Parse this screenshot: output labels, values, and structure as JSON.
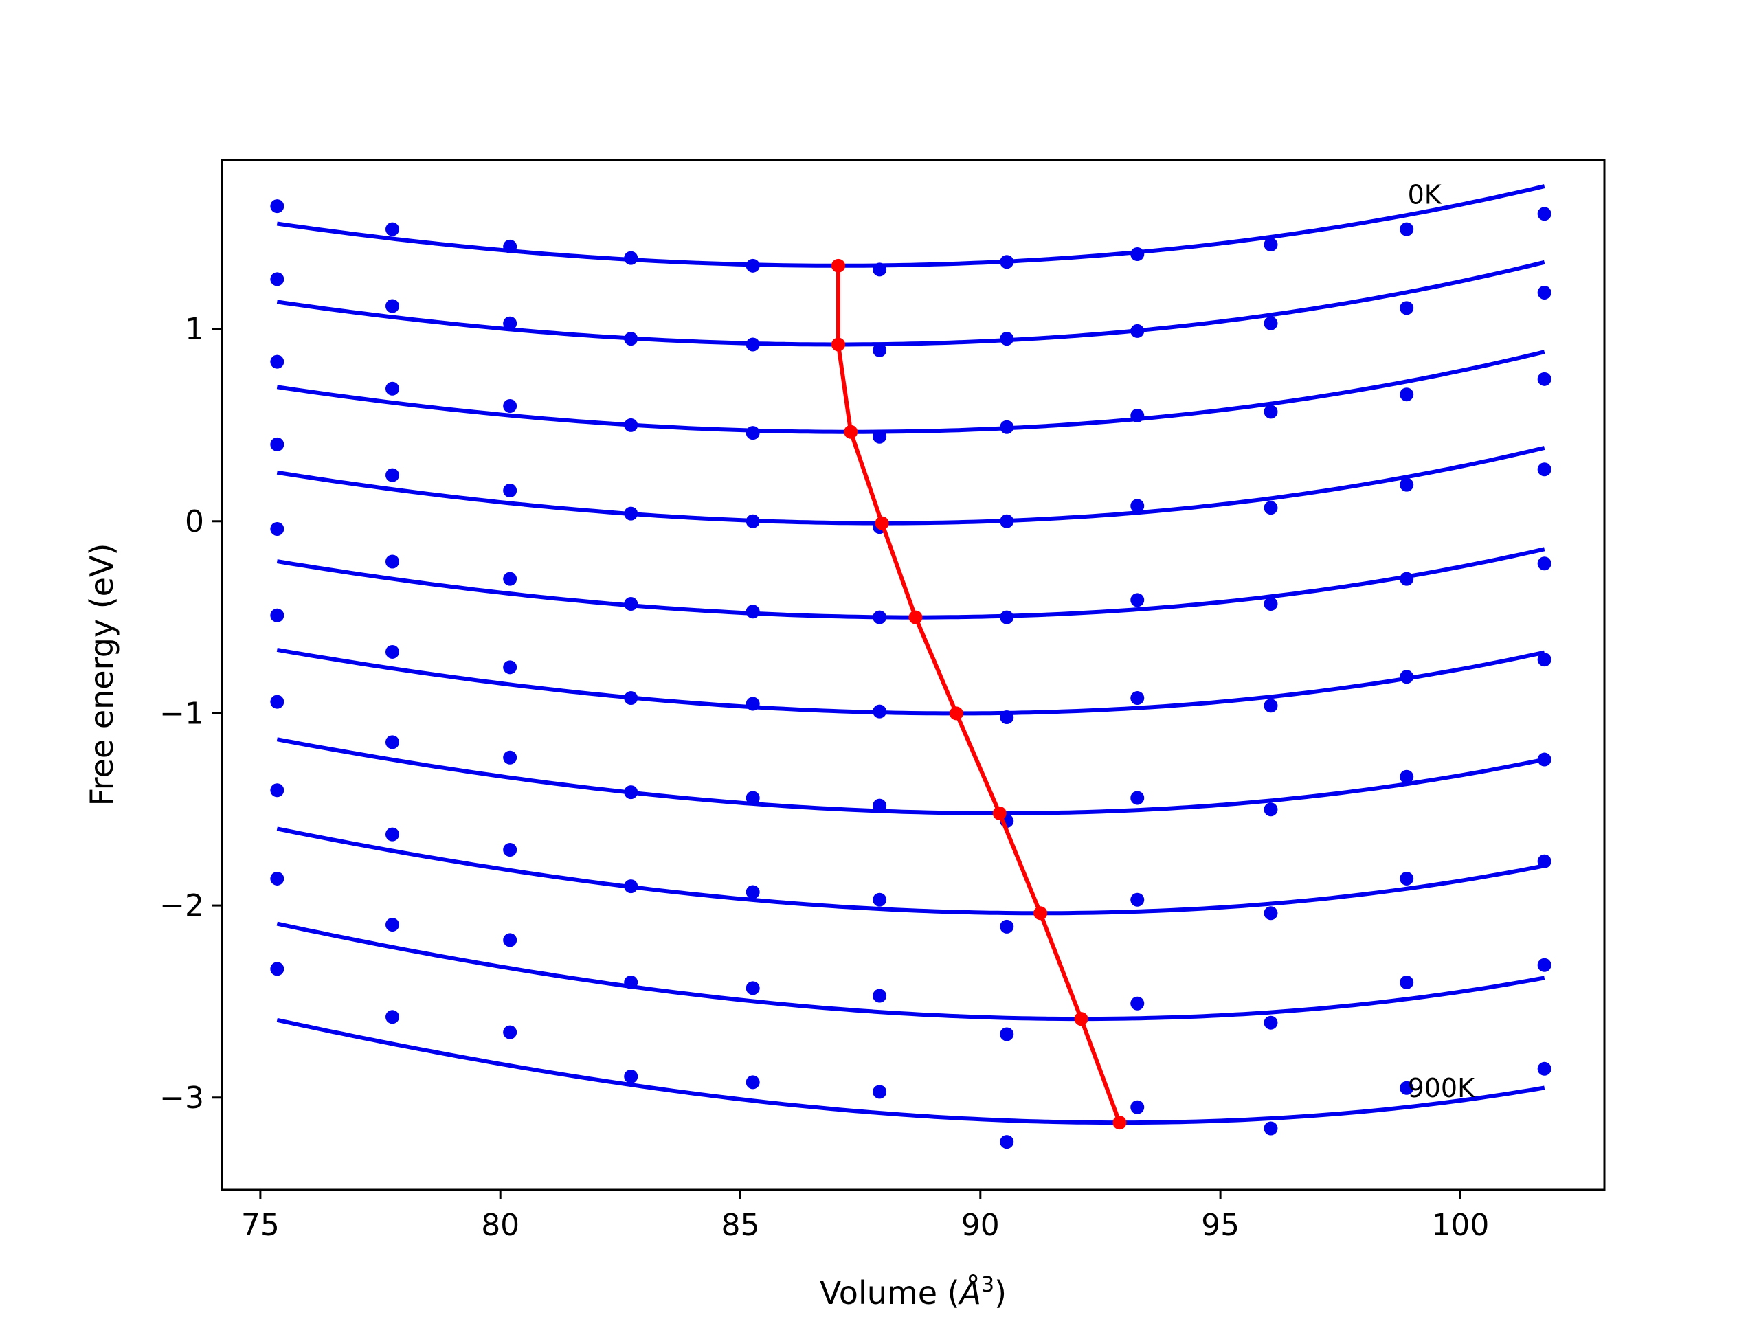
{
  "chart_data": {
    "type": "line",
    "title": "",
    "xlabel": "Volume (",
    "xlabel_unit_symbol": "Å",
    "xlabel_unit_power": "3",
    "xlabel_close": ")",
    "ylabel": "Free energy (eV)",
    "xlim": [
      74.2,
      103.0
    ],
    "ylim": [
      -3.48,
      1.88
    ],
    "grid": false,
    "x_ticks": [
      75,
      80,
      85,
      90,
      95,
      100
    ],
    "x_tick_labels": [
      "75",
      "80",
      "85",
      "90",
      "95",
      "100"
    ],
    "y_ticks": [
      1,
      0,
      -1,
      -2,
      -3
    ],
    "y_tick_labels": [
      "1",
      "0",
      "−1",
      "−2",
      "−3"
    ],
    "volumes": [
      75.35,
      77.75,
      80.2,
      82.72,
      85.26,
      87.9,
      90.55,
      93.27,
      96.05,
      98.88,
      101.75
    ],
    "colors": {
      "curves": "#0000ee",
      "minima": "#ff0000"
    },
    "series": [
      {
        "points": [
          1.64,
          1.52,
          1.43,
          1.37,
          1.33,
          1.31,
          1.35,
          1.39,
          1.44,
          1.52,
          1.6
        ],
        "fit": {
          "vmin": 87.04,
          "fmin": 1.33,
          "a": 0.00174,
          "b": 1.17e-05
        }
      },
      {
        "points": [
          1.26,
          1.12,
          1.03,
          0.95,
          0.92,
          0.89,
          0.95,
          0.99,
          1.03,
          1.11,
          1.19
        ],
        "fit": {
          "vmin": 87.04,
          "fmin": 0.92,
          "a": 0.00178,
          "b": 1.34e-05
        }
      },
      {
        "points": [
          0.83,
          0.69,
          0.6,
          0.5,
          0.46,
          0.44,
          0.49,
          0.55,
          0.57,
          0.66,
          0.74
        ],
        "fit": {
          "vmin": 87.3,
          "fmin": 0.465,
          "a": 0.0018,
          "b": 1.35e-05
        }
      },
      {
        "points": [
          0.4,
          0.24,
          0.16,
          0.04,
          0.0,
          -0.03,
          0.0,
          0.08,
          0.07,
          0.19,
          0.27
        ],
        "fit": {
          "vmin": 87.95,
          "fmin": -0.01,
          "a": 0.00185,
          "b": 1.5e-05
        }
      },
      {
        "points": [
          -0.04,
          -0.21,
          -0.3,
          -0.43,
          -0.47,
          -0.5,
          -0.5,
          -0.41,
          -0.43,
          -0.3,
          -0.22
        ],
        "fit": {
          "vmin": 88.65,
          "fmin": -0.5,
          "a": 0.00186,
          "b": 1.6e-05
        }
      },
      {
        "points": [
          -0.49,
          -0.68,
          -0.76,
          -0.92,
          -0.95,
          -0.99,
          -1.02,
          -0.92,
          -0.96,
          -0.81,
          -0.72
        ],
        "fit": {
          "vmin": 89.5,
          "fmin": -1.0,
          "a": 0.0019,
          "b": 1.75e-05
        }
      },
      {
        "points": [
          -0.94,
          -1.15,
          -1.23,
          -1.41,
          -1.44,
          -1.48,
          -1.56,
          -1.44,
          -1.5,
          -1.33,
          -1.24
        ],
        "fit": {
          "vmin": 90.4,
          "fmin": -1.52,
          "a": 0.00197,
          "b": 1.8e-05
        }
      },
      {
        "points": [
          -1.4,
          -1.63,
          -1.71,
          -1.9,
          -1.93,
          -1.97,
          -2.11,
          -1.97,
          -2.04,
          -1.86,
          -1.77
        ],
        "fit": {
          "vmin": 91.25,
          "fmin": -2.04,
          "a": 0.00204,
          "b": 1.9e-05
        }
      },
      {
        "points": [
          -1.86,
          -2.1,
          -2.18,
          -2.4,
          -2.43,
          -2.47,
          -2.67,
          -2.51,
          -2.61,
          -2.4,
          -2.31
        ],
        "fit": {
          "vmin": 92.1,
          "fmin": -2.59,
          "a": 0.0021,
          "b": 2e-05
        }
      },
      {
        "points": [
          -2.33,
          -2.58,
          -2.66,
          -2.89,
          -2.92,
          -2.97,
          -3.23,
          -3.05,
          -3.16,
          -2.95,
          -2.85
        ],
        "fit": {
          "vmin": 92.9,
          "fmin": -3.13,
          "a": 0.00212,
          "b": 2.2e-05
        }
      }
    ],
    "minima_path": {
      "x": [
        87.04,
        87.04,
        87.3,
        87.95,
        88.65,
        89.5,
        90.4,
        91.25,
        92.1,
        92.9
      ],
      "y": [
        1.33,
        0.92,
        0.465,
        -0.01,
        -0.5,
        -1.0,
        -1.52,
        -2.04,
        -2.59,
        -3.13
      ]
    },
    "annotations": [
      {
        "text": "0K",
        "x": 98.9,
        "y": 1.69
      },
      {
        "text": "900K",
        "x": 98.9,
        "y": -2.96
      }
    ]
  }
}
